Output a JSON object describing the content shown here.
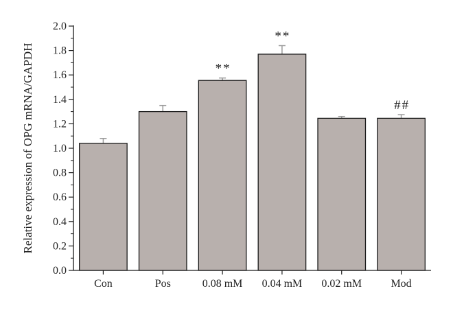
{
  "chart_data": {
    "type": "bar",
    "title": "",
    "xlabel": "",
    "ylabel": "Relative expression of OPG mRNA/GAPDH",
    "ylim": [
      0,
      2.0
    ],
    "yticks": [
      "0.0",
      "0.2",
      "0.4",
      "0.6",
      "0.8",
      "1.0",
      "1.2",
      "1.4",
      "1.6",
      "1.8",
      "2.0"
    ],
    "categories": [
      "Con",
      "Pos",
      "0.08 mM",
      "0.04 mM",
      "0.02 mM",
      "Mod"
    ],
    "values": [
      1.04,
      1.3,
      1.555,
      1.77,
      1.245,
      1.245
    ],
    "errors": [
      0.04,
      0.05,
      0.02,
      0.07,
      0.015,
      0.03
    ],
    "significance": [
      "",
      "",
      "**",
      "**",
      "",
      "##"
    ],
    "grid": false,
    "colors": {
      "bar_fill": "#b8b0ad",
      "bar_stroke": "#1a1a1a",
      "error_bar": "#9a9a9a",
      "axis": "#1a1a1a"
    }
  }
}
